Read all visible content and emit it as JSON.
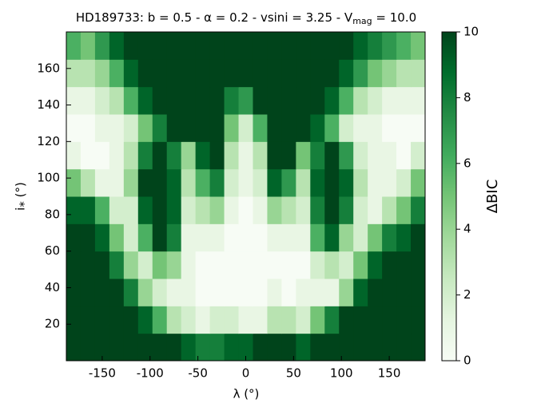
{
  "chart_data": {
    "type": "heatmap",
    "title": [
      "HD189733:  b = 0.5 - α = 0.2 - vsini = 3.25 - V",
      "mag",
      " = 10.0"
    ],
    "x_label": "λ (°)",
    "y_label": "i⁎ (°)",
    "colorbar_label": "ΔBIC",
    "x": [
      -180,
      -165,
      -150,
      -135,
      -120,
      -105,
      -90,
      -75,
      -60,
      -45,
      -30,
      -15,
      0,
      15,
      30,
      45,
      60,
      75,
      90,
      105,
      120,
      135,
      150,
      165,
      180
    ],
    "y": [
      7.5,
      22.5,
      37.5,
      52.5,
      67.5,
      82.5,
      97.5,
      112.5,
      127.5,
      142.5,
      157.5,
      172.5
    ],
    "values": [
      [
        10,
        10,
        10,
        10,
        10,
        10,
        10,
        10,
        9,
        8,
        8,
        9,
        9,
        10,
        10,
        10,
        9,
        10,
        10,
        10,
        10,
        10,
        10,
        10,
        10
      ],
      [
        10,
        10,
        10,
        10,
        10,
        9,
        6,
        3,
        2,
        1,
        2,
        2,
        1,
        1,
        3,
        3,
        2,
        5,
        8,
        10,
        10,
        10,
        10,
        10,
        10
      ],
      [
        10,
        10,
        10,
        10,
        8,
        4,
        2,
        1,
        1,
        0,
        0,
        0,
        0,
        0,
        1,
        0,
        1,
        1,
        1,
        4,
        9,
        10,
        10,
        10,
        10
      ],
      [
        10,
        10,
        10,
        8,
        4,
        2,
        5,
        4,
        1,
        0,
        0,
        0,
        0,
        0,
        0,
        0,
        0,
        2,
        3,
        2,
        5,
        9,
        10,
        10,
        10
      ],
      [
        10,
        10,
        9,
        5,
        2,
        6,
        10,
        8,
        1,
        1,
        1,
        0,
        0,
        0,
        1,
        1,
        1,
        6,
        9,
        4,
        2,
        5,
        8,
        9,
        10
      ],
      [
        9,
        9,
        6,
        2,
        2,
        9,
        10,
        9,
        2,
        3,
        4,
        1,
        0,
        1,
        4,
        3,
        2,
        8,
        10,
        8,
        2,
        1,
        3,
        5,
        8
      ],
      [
        5,
        3,
        1,
        1,
        4,
        10,
        10,
        9,
        3,
        6,
        8,
        2,
        1,
        2,
        9,
        7,
        3,
        9,
        10,
        9,
        3,
        1,
        1,
        2,
        5
      ],
      [
        1,
        0,
        0,
        1,
        3,
        8,
        10,
        8,
        4,
        9,
        10,
        3,
        1,
        3,
        10,
        10,
        5,
        8,
        10,
        7,
        2,
        1,
        1,
        0,
        2
      ],
      [
        0,
        0,
        1,
        1,
        2,
        5,
        8,
        10,
        10,
        10,
        10,
        5,
        2,
        6,
        10,
        10,
        10,
        9,
        6,
        2,
        1,
        1,
        0,
        0,
        0
      ],
      [
        1,
        1,
        2,
        3,
        6,
        9,
        10,
        10,
        10,
        10,
        10,
        8,
        7,
        10,
        10,
        10,
        10,
        10,
        9,
        6,
        3,
        2,
        1,
        1,
        1
      ],
      [
        3,
        3,
        4,
        6,
        9,
        10,
        10,
        10,
        10,
        10,
        10,
        10,
        10,
        10,
        10,
        10,
        10,
        10,
        10,
        9,
        7,
        5,
        4,
        3,
        3
      ],
      [
        6,
        5,
        7,
        9,
        10,
        10,
        10,
        10,
        10,
        10,
        10,
        10,
        10,
        10,
        10,
        10,
        10,
        10,
        10,
        10,
        9,
        8,
        7,
        6,
        5
      ]
    ],
    "xlim": [
      -187.5,
      187.5
    ],
    "ylim": [
      0,
      180
    ],
    "xticks": [
      -150,
      -100,
      -50,
      0,
      50,
      100,
      150
    ],
    "yticks": [
      20,
      40,
      60,
      80,
      100,
      120,
      140,
      160
    ],
    "zlim": [
      0,
      10
    ],
    "zticks": [
      0,
      2,
      4,
      6,
      8,
      10
    ],
    "colormap": [
      "#f7fcf5",
      "#e5f5e0",
      "#c7e9c0",
      "#a1d99b",
      "#74c476",
      "#41ab5d",
      "#238b45",
      "#006d2c",
      "#00441b"
    ]
  }
}
